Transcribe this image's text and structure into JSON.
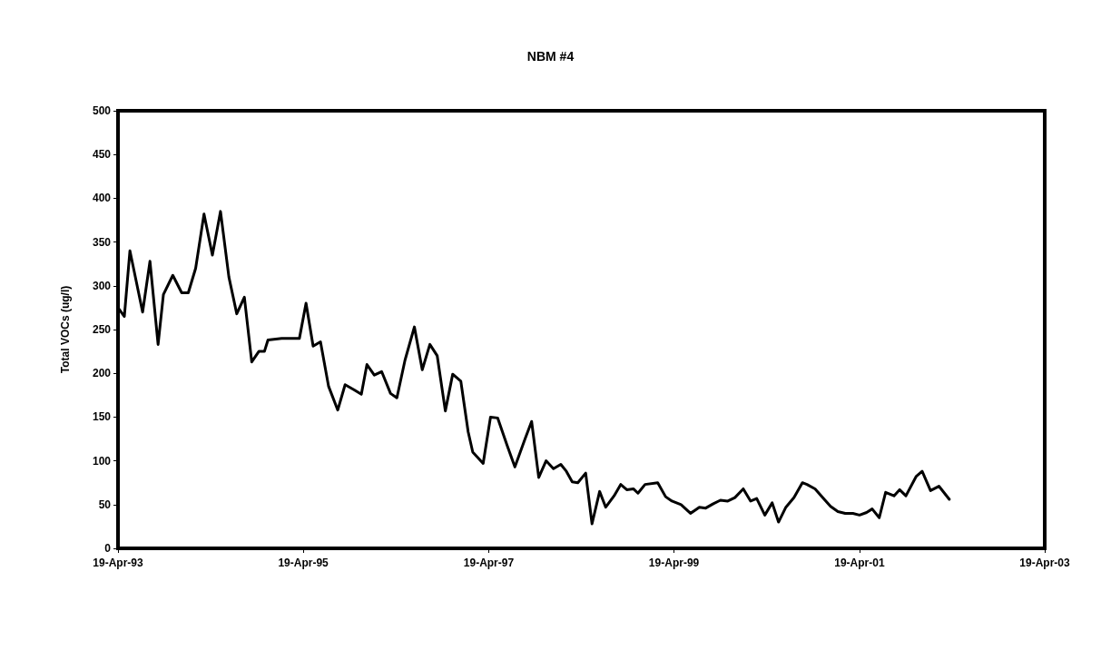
{
  "chart_data": {
    "type": "line",
    "title": "NBM #4",
    "ylabel": "Total VOCs (ug/l)",
    "x": [
      "1993-04-19",
      "1993-05-14",
      "1993-06-05",
      "1993-07-25",
      "1993-08-23",
      "1993-09-24",
      "1993-10-15",
      "1993-11-21",
      "1993-12-26",
      "1994-01-21",
      "1994-02-19",
      "1994-03-24",
      "1994-04-26",
      "1994-05-28",
      "1994-06-30",
      "1994-07-31",
      "1994-08-30",
      "1994-09-28",
      "1994-10-26",
      "1994-11-17",
      "1994-12-01",
      "1995-01-24",
      "1995-04-04",
      "1995-04-30",
      "1995-05-28",
      "1995-06-26",
      "1995-07-28",
      "1995-09-02",
      "1995-10-01",
      "1995-11-06",
      "1995-12-04",
      "1995-12-26",
      "1996-01-24",
      "1996-02-22",
      "1996-03-28",
      "1996-04-22",
      "1996-05-24",
      "1996-06-30",
      "1996-07-31",
      "1996-08-30",
      "1996-09-28",
      "1996-10-30",
      "1996-11-28",
      "1996-12-30",
      "1997-01-28",
      "1997-02-15",
      "1997-03-28",
      "1997-04-26",
      "1997-05-24",
      "1997-06-30",
      "1997-07-31",
      "1997-09-09",
      "1997-10-05",
      "1997-11-02",
      "1997-12-01",
      "1997-12-30",
      "1998-01-28",
      "1998-02-19",
      "1998-03-14",
      "1998-04-05",
      "1998-05-06",
      "1998-05-31",
      "1998-06-30",
      "1998-07-24",
      "1998-08-26",
      "1998-09-21",
      "1998-10-15",
      "1998-11-10",
      "1998-11-28",
      "1998-12-26",
      "1999-02-14",
      "1999-03-17",
      "1999-04-11",
      "1999-05-17",
      "1999-06-23",
      "1999-07-28",
      "1999-08-22",
      "1999-09-21",
      "1999-10-19",
      "1999-11-17",
      "1999-12-15",
      "2000-01-17",
      "2000-02-15",
      "2000-03-10",
      "2000-04-11",
      "2000-05-10",
      "2000-06-04",
      "2000-07-03",
      "2000-08-04",
      "2000-09-06",
      "2000-09-24",
      "2000-10-26",
      "2000-11-28",
      "2000-12-26",
      "2001-01-24",
      "2001-02-22",
      "2001-03-24",
      "2001-04-19",
      "2001-05-17",
      "2001-06-08",
      "2001-07-06",
      "2001-07-31",
      "2001-09-02",
      "2001-09-24",
      "2001-10-19",
      "2001-11-28",
      "2001-12-22",
      "2002-01-24",
      "2002-02-26",
      "2002-04-08"
    ],
    "values": [
      275,
      265,
      340,
      270,
      328,
      233,
      290,
      312,
      292,
      292,
      320,
      382,
      335,
      385,
      310,
      268,
      287,
      213,
      225,
      225,
      238,
      240,
      240,
      280,
      231,
      236,
      185,
      158,
      187,
      181,
      176,
      210,
      198,
      202,
      177,
      172,
      215,
      253,
      204,
      233,
      220,
      157,
      199,
      191,
      133,
      110,
      97,
      150,
      149,
      118,
      93,
      125,
      145,
      81,
      100,
      91,
      96,
      88,
      76,
      75,
      86,
      28,
      65,
      47,
      60,
      73,
      67,
      68,
      63,
      73,
      75,
      59,
      54,
      50,
      40,
      47,
      46,
      51,
      55,
      54,
      58,
      68,
      54,
      57,
      38,
      52,
      30,
      47,
      58,
      75,
      73,
      68,
      57,
      48,
      42,
      40,
      40,
      38,
      41,
      45,
      35,
      64,
      60,
      67,
      60,
      82,
      88,
      66,
      71,
      56
    ],
    "color": "#000000",
    "marker": "none",
    "line_style": "solid",
    "xlim": [
      "1993-04-19",
      "2003-04-19"
    ],
    "xticks": [
      {
        "value": "1993-04-19",
        "label": "19-Apr-93"
      },
      {
        "value": "1995-04-19",
        "label": "19-Apr-95"
      },
      {
        "value": "1997-04-19",
        "label": "19-Apr-97"
      },
      {
        "value": "1999-04-19",
        "label": "19-Apr-99"
      },
      {
        "value": "2001-04-19",
        "label": "19-Apr-01"
      },
      {
        "value": "2003-04-19",
        "label": "19-Apr-03"
      }
    ],
    "ylim": [
      0,
      500
    ],
    "yticks": [
      0,
      50,
      100,
      150,
      200,
      250,
      300,
      350,
      400,
      450,
      500
    ]
  }
}
